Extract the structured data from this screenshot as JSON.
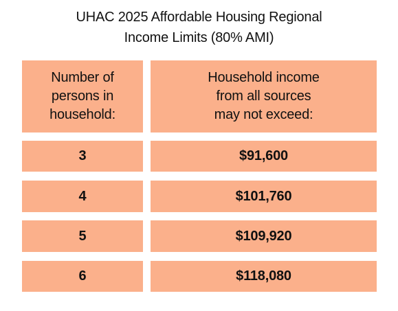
{
  "title": {
    "line1": "UHAC 2025 Affordable Housing Regional",
    "line2": "Income Limits (80% AMI)"
  },
  "table": {
    "header": {
      "persons": [
        "Number of",
        "persons in",
        "household:"
      ],
      "income": [
        "Household income",
        "from all sources",
        "may not exceed:"
      ]
    },
    "rows": [
      {
        "persons": "3",
        "income": "$91,600"
      },
      {
        "persons": "4",
        "income": "$101,760"
      },
      {
        "persons": "5",
        "income": "$109,920"
      },
      {
        "persons": "6",
        "income": "$118,080"
      }
    ]
  },
  "colors": {
    "cell_background": "#fbb08b",
    "text": "#111111",
    "page_background": "#ffffff"
  }
}
